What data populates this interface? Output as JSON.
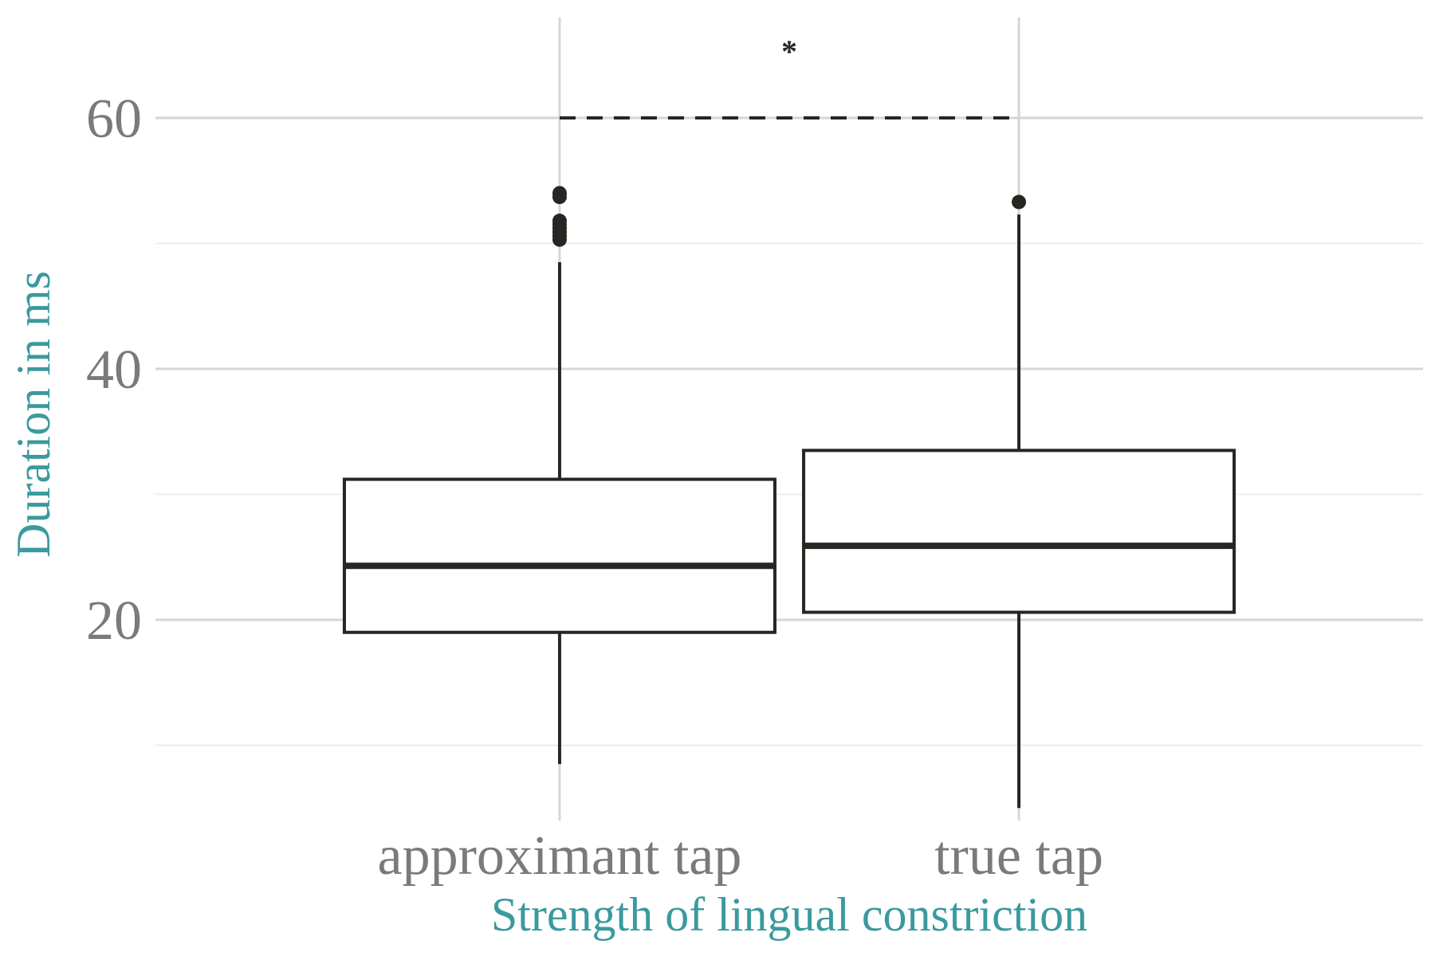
{
  "chart_data": {
    "type": "box",
    "title": "",
    "xlabel": "Strength of lingual constriction",
    "ylabel": "Duration in ms",
    "ylim": [
      4,
      68
    ],
    "yticks": [
      20,
      40,
      60
    ],
    "ytick_labels": [
      "20",
      "40",
      "60"
    ],
    "grid": true,
    "categories": [
      "approximant tap",
      "true tap"
    ],
    "boxes": [
      {
        "category": "approximant tap",
        "whisker_low": 8.5,
        "q1": 19,
        "median": 24.3,
        "q3": 31.2,
        "whisker_high": 48.5,
        "outliers": [
          50.3,
          50.6,
          50.9,
          51.2,
          51.5,
          51.8,
          53.7,
          54.0
        ]
      },
      {
        "category": "true tap",
        "whisker_low": 5.0,
        "q1": 20.6,
        "median": 25.9,
        "q3": 33.5,
        "whisker_high": 52.3,
        "outliers": [
          53.3
        ]
      }
    ],
    "annotations": [
      {
        "type": "bracket",
        "from": "approximant tap",
        "to": "true tap",
        "y": 60,
        "label": "*"
      }
    ],
    "colors": {
      "box_stroke": "#262622",
      "axis_title": "#3a9a9e",
      "tick_label": "#7a7a7a",
      "grid_major": "#d6d6d6",
      "grid_minor": "#ececec"
    }
  }
}
